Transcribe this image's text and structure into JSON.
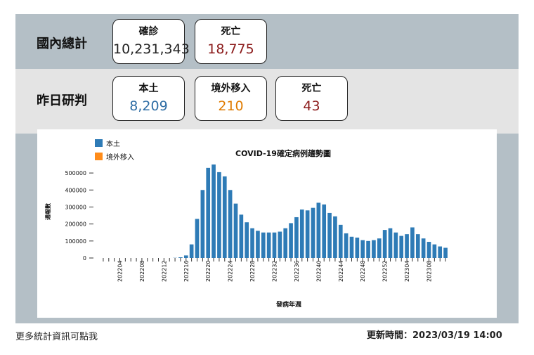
{
  "domestic": {
    "label": "國內總計",
    "cards": [
      {
        "title": "確診",
        "value": "10,231,343",
        "color": "#222222"
      },
      {
        "title": "死亡",
        "value": "18,775",
        "color": "#8b1a1a"
      }
    ]
  },
  "yesterday": {
    "label": "昨日研判",
    "cards": [
      {
        "title": "本土",
        "value": "8,209",
        "color": "#2e6da4"
      },
      {
        "title": "境外移入",
        "value": "210",
        "color": "#e07b00"
      },
      {
        "title": "死亡",
        "value": "43",
        "color": "#8b1a1a"
      }
    ]
  },
  "footer": {
    "more_link": "更多統計資訊可點我",
    "updated": "更新時間：2023/03/19 14:00"
  },
  "chart_data": {
    "type": "bar",
    "title": "COVID-19確定病例趨勢圖",
    "xlabel": "發病年週",
    "ylabel": "通報數",
    "ylim": [
      0,
      550000
    ],
    "yticks": [
      0,
      100000,
      200000,
      300000,
      400000,
      500000
    ],
    "ytick_labels": [
      "0",
      "100000",
      "200000",
      "300000",
      "400000",
      "500000"
    ],
    "legend": {
      "position": "top-left",
      "entries": [
        {
          "name": "本土",
          "color": "#2e7bb6"
        },
        {
          "name": "境外移入",
          "color": "#ff8c1a"
        }
      ]
    },
    "grid": false,
    "xtick_labels": [
      "202204",
      "202208",
      "202212",
      "202216",
      "202220",
      "202224",
      "202228",
      "202232",
      "202236",
      "202240",
      "202244",
      "202248",
      "202252",
      "202304",
      "202308"
    ],
    "xtick_every": 4,
    "categories": [
      "202201",
      "202202",
      "202203",
      "202204",
      "202205",
      "202206",
      "202207",
      "202208",
      "202209",
      "202210",
      "202211",
      "202212",
      "202213",
      "202214",
      "202215",
      "202216",
      "202217",
      "202218",
      "202219",
      "202220",
      "202221",
      "202222",
      "202223",
      "202224",
      "202225",
      "202226",
      "202227",
      "202228",
      "202229",
      "202230",
      "202231",
      "202232",
      "202233",
      "202234",
      "202235",
      "202236",
      "202237",
      "202238",
      "202239",
      "202240",
      "202241",
      "202242",
      "202243",
      "202244",
      "202245",
      "202246",
      "202247",
      "202248",
      "202249",
      "202250",
      "202251",
      "202252",
      "202301",
      "202302",
      "202303",
      "202304",
      "202305",
      "202306",
      "202307",
      "202308",
      "202309",
      "202310",
      "202311"
    ],
    "series": [
      {
        "name": "本土",
        "color": "#2e7bb6",
        "values": [
          0,
          0,
          0,
          0,
          0,
          0,
          0,
          0,
          0,
          0,
          0,
          0,
          0,
          1000,
          4000,
          15000,
          80000,
          230000,
          400000,
          530000,
          550000,
          505000,
          480000,
          400000,
          320000,
          255000,
          210000,
          175000,
          160000,
          150000,
          150000,
          150000,
          155000,
          175000,
          205000,
          240000,
          285000,
          280000,
          295000,
          325000,
          315000,
          265000,
          245000,
          195000,
          145000,
          125000,
          120000,
          105000,
          100000,
          105000,
          115000,
          165000,
          175000,
          150000,
          130000,
          140000,
          180000,
          140000,
          115000,
          95000,
          80000,
          68000,
          60000
        ]
      },
      {
        "name": "境外移入",
        "color": "#ff8c1a",
        "values": [
          0,
          0,
          0,
          0,
          0,
          0,
          0,
          0,
          0,
          0,
          0,
          0,
          0,
          0,
          0,
          0,
          0,
          0,
          0,
          0,
          0,
          0,
          0,
          0,
          0,
          0,
          0,
          0,
          0,
          0,
          0,
          0,
          0,
          0,
          0,
          0,
          0,
          0,
          0,
          0,
          0,
          0,
          0,
          0,
          0,
          0,
          0,
          0,
          0,
          0,
          0,
          0,
          0,
          0,
          0,
          0,
          0,
          0,
          0,
          0,
          0,
          0,
          0
        ]
      }
    ]
  }
}
